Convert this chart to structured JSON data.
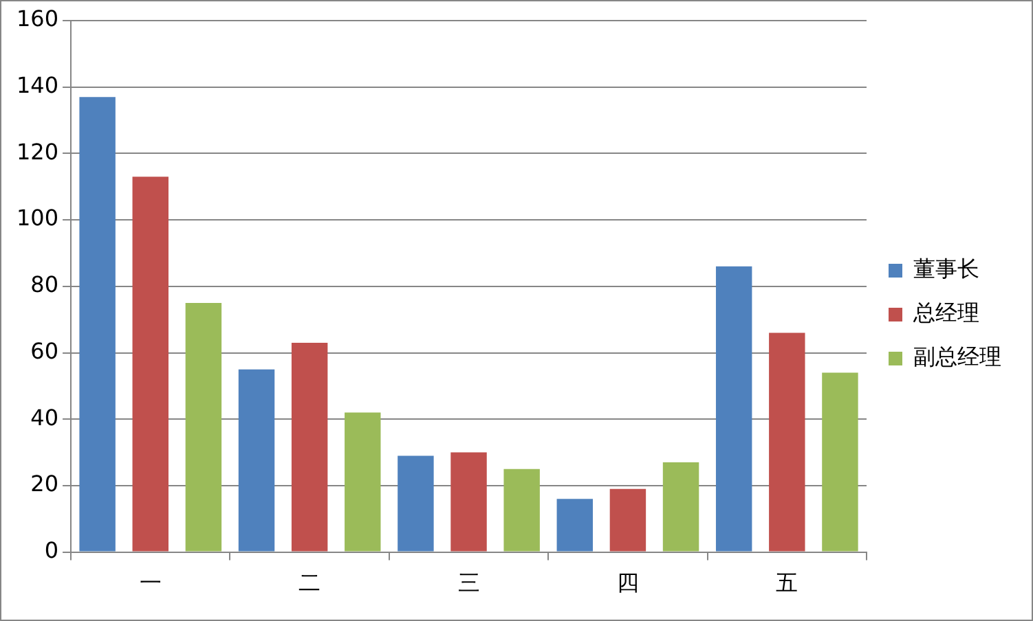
{
  "chart_data": {
    "type": "bar",
    "categories": [
      "一",
      "二",
      "三",
      "四",
      "五"
    ],
    "series": [
      {
        "name": "董事长",
        "color": "#4f81bd",
        "values": [
          137,
          55,
          29,
          16,
          86
        ]
      },
      {
        "name": "总经理",
        "color": "#c0504d",
        "values": [
          113,
          63,
          30,
          19,
          66
        ]
      },
      {
        "name": "副总经理",
        "color": "#9bbb59",
        "values": [
          75,
          42,
          25,
          27,
          54
        ]
      }
    ],
    "ylim": [
      0,
      160
    ],
    "yticks": [
      0,
      20,
      40,
      60,
      80,
      100,
      120,
      140,
      160
    ],
    "grid": "y",
    "legend": "right"
  }
}
